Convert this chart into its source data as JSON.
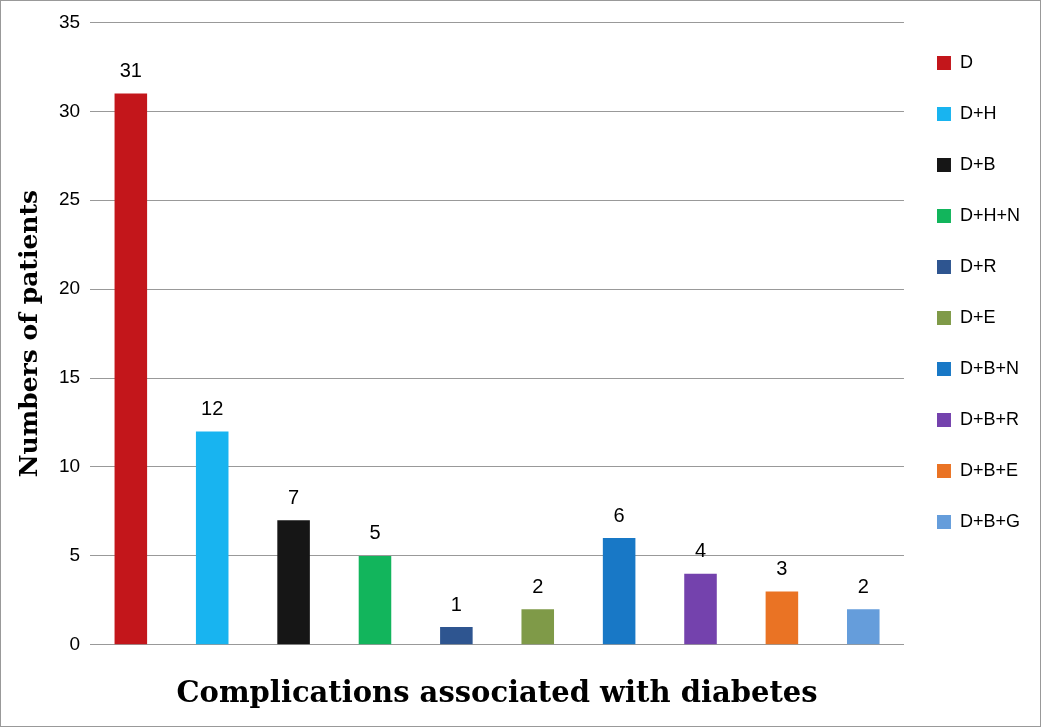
{
  "chart_data": {
    "type": "bar",
    "xlabel": "Complications associated with diabetes",
    "ylabel": "Numbers of patients",
    "categories": [
      null,
      null,
      null,
      null,
      null,
      null,
      null,
      null,
      null,
      null
    ],
    "series": [
      {
        "name": "D",
        "color": "#c3161b",
        "values": [
          31,
          null,
          null,
          null,
          null,
          null,
          null,
          null,
          null,
          null
        ]
      },
      {
        "name": "D+H",
        "color": "#18b4f0",
        "values": [
          null,
          12,
          null,
          null,
          null,
          null,
          null,
          null,
          null,
          null
        ]
      },
      {
        "name": "D+B",
        "color": "#161616",
        "values": [
          null,
          null,
          7,
          null,
          null,
          null,
          null,
          null,
          null,
          null
        ]
      },
      {
        "name": "D+H+N",
        "color": "#12b55c",
        "values": [
          null,
          null,
          null,
          5,
          null,
          null,
          null,
          null,
          null,
          null
        ]
      },
      {
        "name": "D+R",
        "color": "#2e5590",
        "values": [
          null,
          null,
          null,
          null,
          1,
          null,
          null,
          null,
          null,
          null
        ]
      },
      {
        "name": "D+E",
        "color": "#7f9a48",
        "values": [
          null,
          null,
          null,
          null,
          null,
          2,
          null,
          null,
          null,
          null
        ]
      },
      {
        "name": "D+B+N",
        "color": "#1878c6",
        "values": [
          null,
          null,
          null,
          null,
          null,
          null,
          6,
          null,
          null,
          null
        ]
      },
      {
        "name": "D+B+R",
        "color": "#7442ad",
        "values": [
          null,
          null,
          null,
          null,
          null,
          null,
          null,
          4,
          null,
          null
        ]
      },
      {
        "name": "D+B+E",
        "color": "#ea7324",
        "values": [
          null,
          null,
          null,
          null,
          null,
          null,
          null,
          null,
          3,
          null
        ]
      },
      {
        "name": "D+B+G",
        "color": "#659ddb",
        "values": [
          null,
          null,
          null,
          null,
          null,
          null,
          null,
          null,
          null,
          2
        ]
      }
    ],
    "ylim": [
      0,
      35
    ],
    "yticks": [
      0,
      5,
      10,
      15,
      20,
      25,
      30,
      35
    ],
    "grid": "y",
    "legend": "right",
    "data_labels": true
  }
}
